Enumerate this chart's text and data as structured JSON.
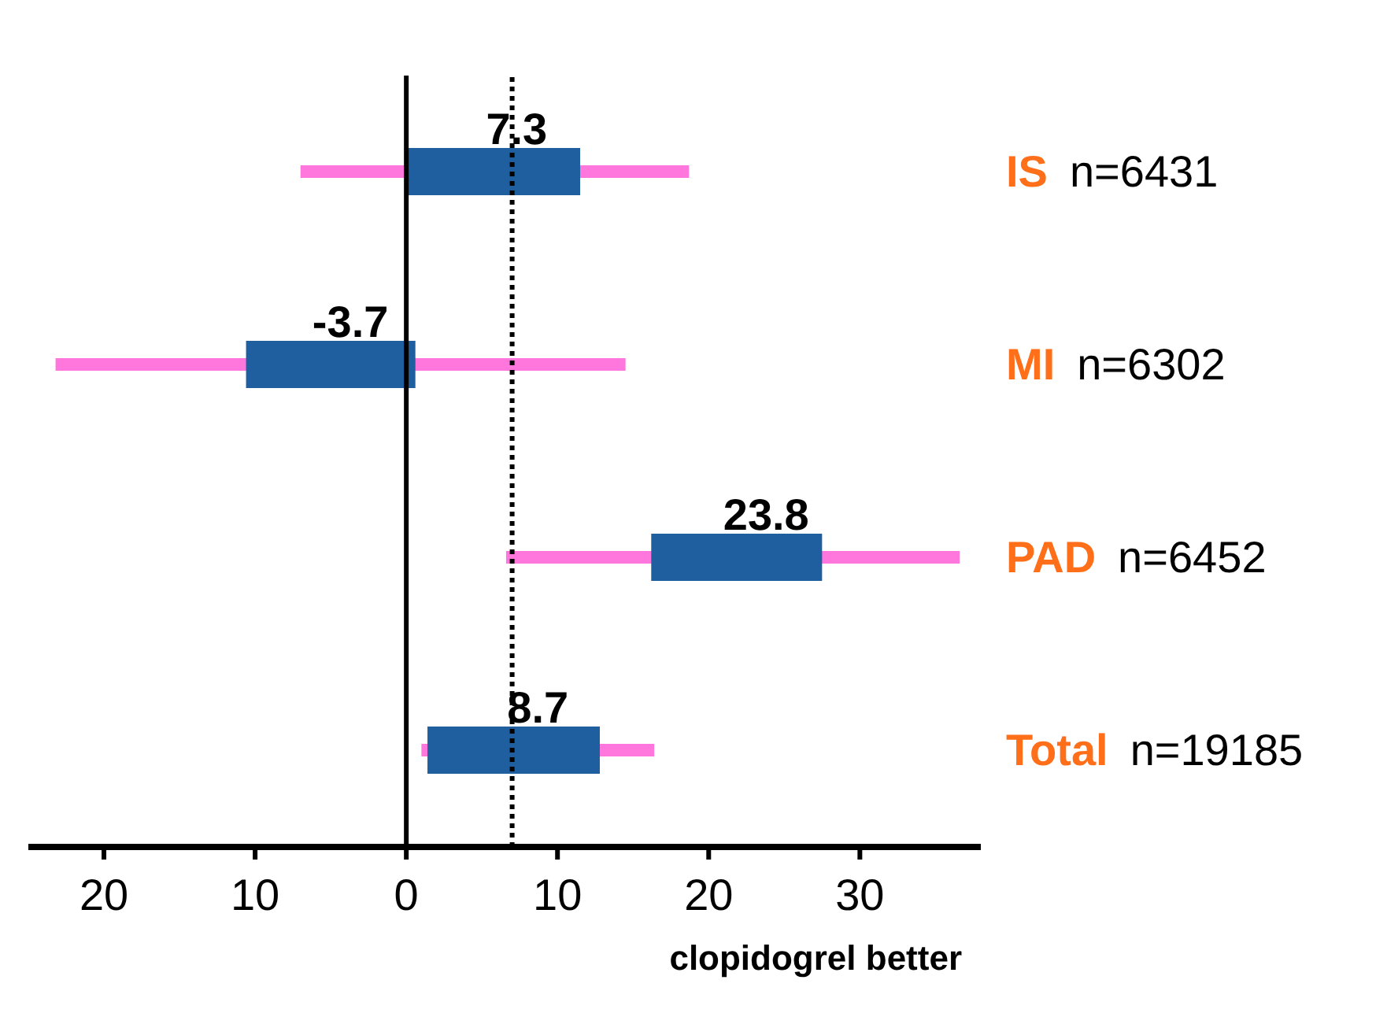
{
  "chart_data": {
    "type": "bar",
    "orientation": "horizontal",
    "categories": [
      "IS",
      "MI",
      "PAD",
      "Total"
    ],
    "xlim": [
      -25,
      38
    ],
    "xticks": [
      {
        "value": -20,
        "label": "20"
      },
      {
        "value": -10,
        "label": "10"
      },
      0,
      10,
      20,
      30
    ],
    "xlabel": "clopidogrel better",
    "series": [
      {
        "color": "#ff77dd",
        "base": [
          -7,
          -23.2,
          6.6,
          1
        ],
        "values": [
          25.7,
          37.7,
          30,
          15.4
        ]
      },
      {
        "color": "#1f5fa0",
        "base": [
          0,
          -10.6,
          16.2,
          1.4
        ],
        "values": [
          11.5,
          11.2,
          11.3,
          11.4
        ]
      }
    ],
    "ref_lines": [
      {
        "axis": "x",
        "value": 0,
        "color": "#000000",
        "line_style": "solid"
      },
      {
        "axis": "x",
        "value": 7,
        "color": "#000000",
        "line_style": "dotted"
      }
    ],
    "annotations": [
      "n=6431",
      "n=6302",
      "n=6452",
      "n=19185",
      {
        "text": "7.3",
        "x": 7.3,
        "y": "IS"
      },
      {
        "text": "-3.7",
        "x": -3.7,
        "y": "MI"
      },
      {
        "text": "23.8",
        "x": 23.8,
        "y": "PAD"
      },
      {
        "text": "8.7",
        "x": 8.7,
        "y": "Total"
      }
    ]
  }
}
